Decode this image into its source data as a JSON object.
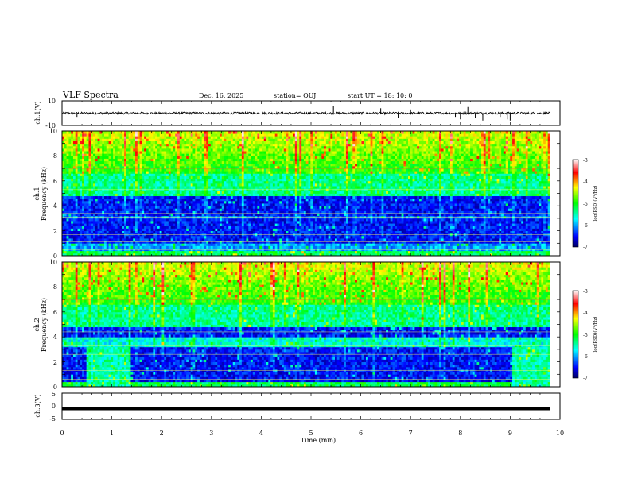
{
  "header": {
    "title": "VLF Spectra",
    "date": "Dec. 16, 2025",
    "station": "station= OUJ",
    "start": "start  UT =   18: 10: 0"
  },
  "chart_data": [
    {
      "type": "line",
      "name": "ch1-waveform",
      "ylabel": "ch.1(V)",
      "ylim": [
        -10,
        10
      ],
      "yticks": [
        "10",
        "-10"
      ],
      "baseline": 0,
      "spikes": [
        {
          "t": 0.3,
          "v": -3
        },
        {
          "t": 5.45,
          "v": 6
        },
        {
          "t": 6.4,
          "v": 4
        },
        {
          "t": 6.75,
          "v": -4
        },
        {
          "t": 7.0,
          "v": 3
        },
        {
          "t": 7.9,
          "v": -3
        },
        {
          "t": 8.0,
          "v": -5
        },
        {
          "t": 8.15,
          "v": 5
        },
        {
          "t": 8.3,
          "v": -4
        },
        {
          "t": 8.45,
          "v": -6
        },
        {
          "t": 8.8,
          "v": -3
        },
        {
          "t": 8.95,
          "v": -5
        },
        {
          "t": 9.0,
          "v": -6
        }
      ]
    },
    {
      "type": "heatmap",
      "name": "ch1-spectrogram",
      "ylabel": "ch.1",
      "ylabel2": "Frequency  (kHz)",
      "xlim": [
        0,
        10
      ],
      "ylim": [
        0,
        10
      ],
      "yticks": [
        "0",
        "2",
        "4",
        "6",
        "8",
        "10"
      ],
      "data_end_min": 9.8,
      "colorbar": {
        "label": "log(PSD)(V²/Hz)",
        "ticks": [
          "-3",
          "-4",
          "-5",
          "-6",
          "-7"
        ],
        "range": [
          -7,
          -3
        ]
      }
    },
    {
      "type": "heatmap",
      "name": "ch2-spectrogram",
      "ylabel": "ch.2",
      "ylabel2": "Frequency  (kHz)",
      "xlim": [
        0,
        10
      ],
      "ylim": [
        0,
        10
      ],
      "yticks": [
        "0",
        "2",
        "4",
        "6",
        "8",
        "10"
      ],
      "data_end_min": 9.8,
      "colorbar": {
        "label": "log(PSD)(V²/Hz)",
        "ticks": [
          "-3",
          "-4",
          "-5",
          "-6",
          "-7"
        ],
        "range": [
          -7,
          -3
        ]
      }
    },
    {
      "type": "line",
      "name": "ch3-waveform",
      "ylabel": "ch.3(V)",
      "ylim": [
        -5,
        5
      ],
      "yticks": [
        "5",
        "0",
        "-5"
      ],
      "level": -1
    }
  ],
  "xaxis": {
    "label": "Time  (min)",
    "ticks": [
      "0",
      "1",
      "2",
      "3",
      "4",
      "5",
      "6",
      "7",
      "8",
      "9",
      "10"
    ],
    "xlim": [
      0,
      10
    ]
  }
}
